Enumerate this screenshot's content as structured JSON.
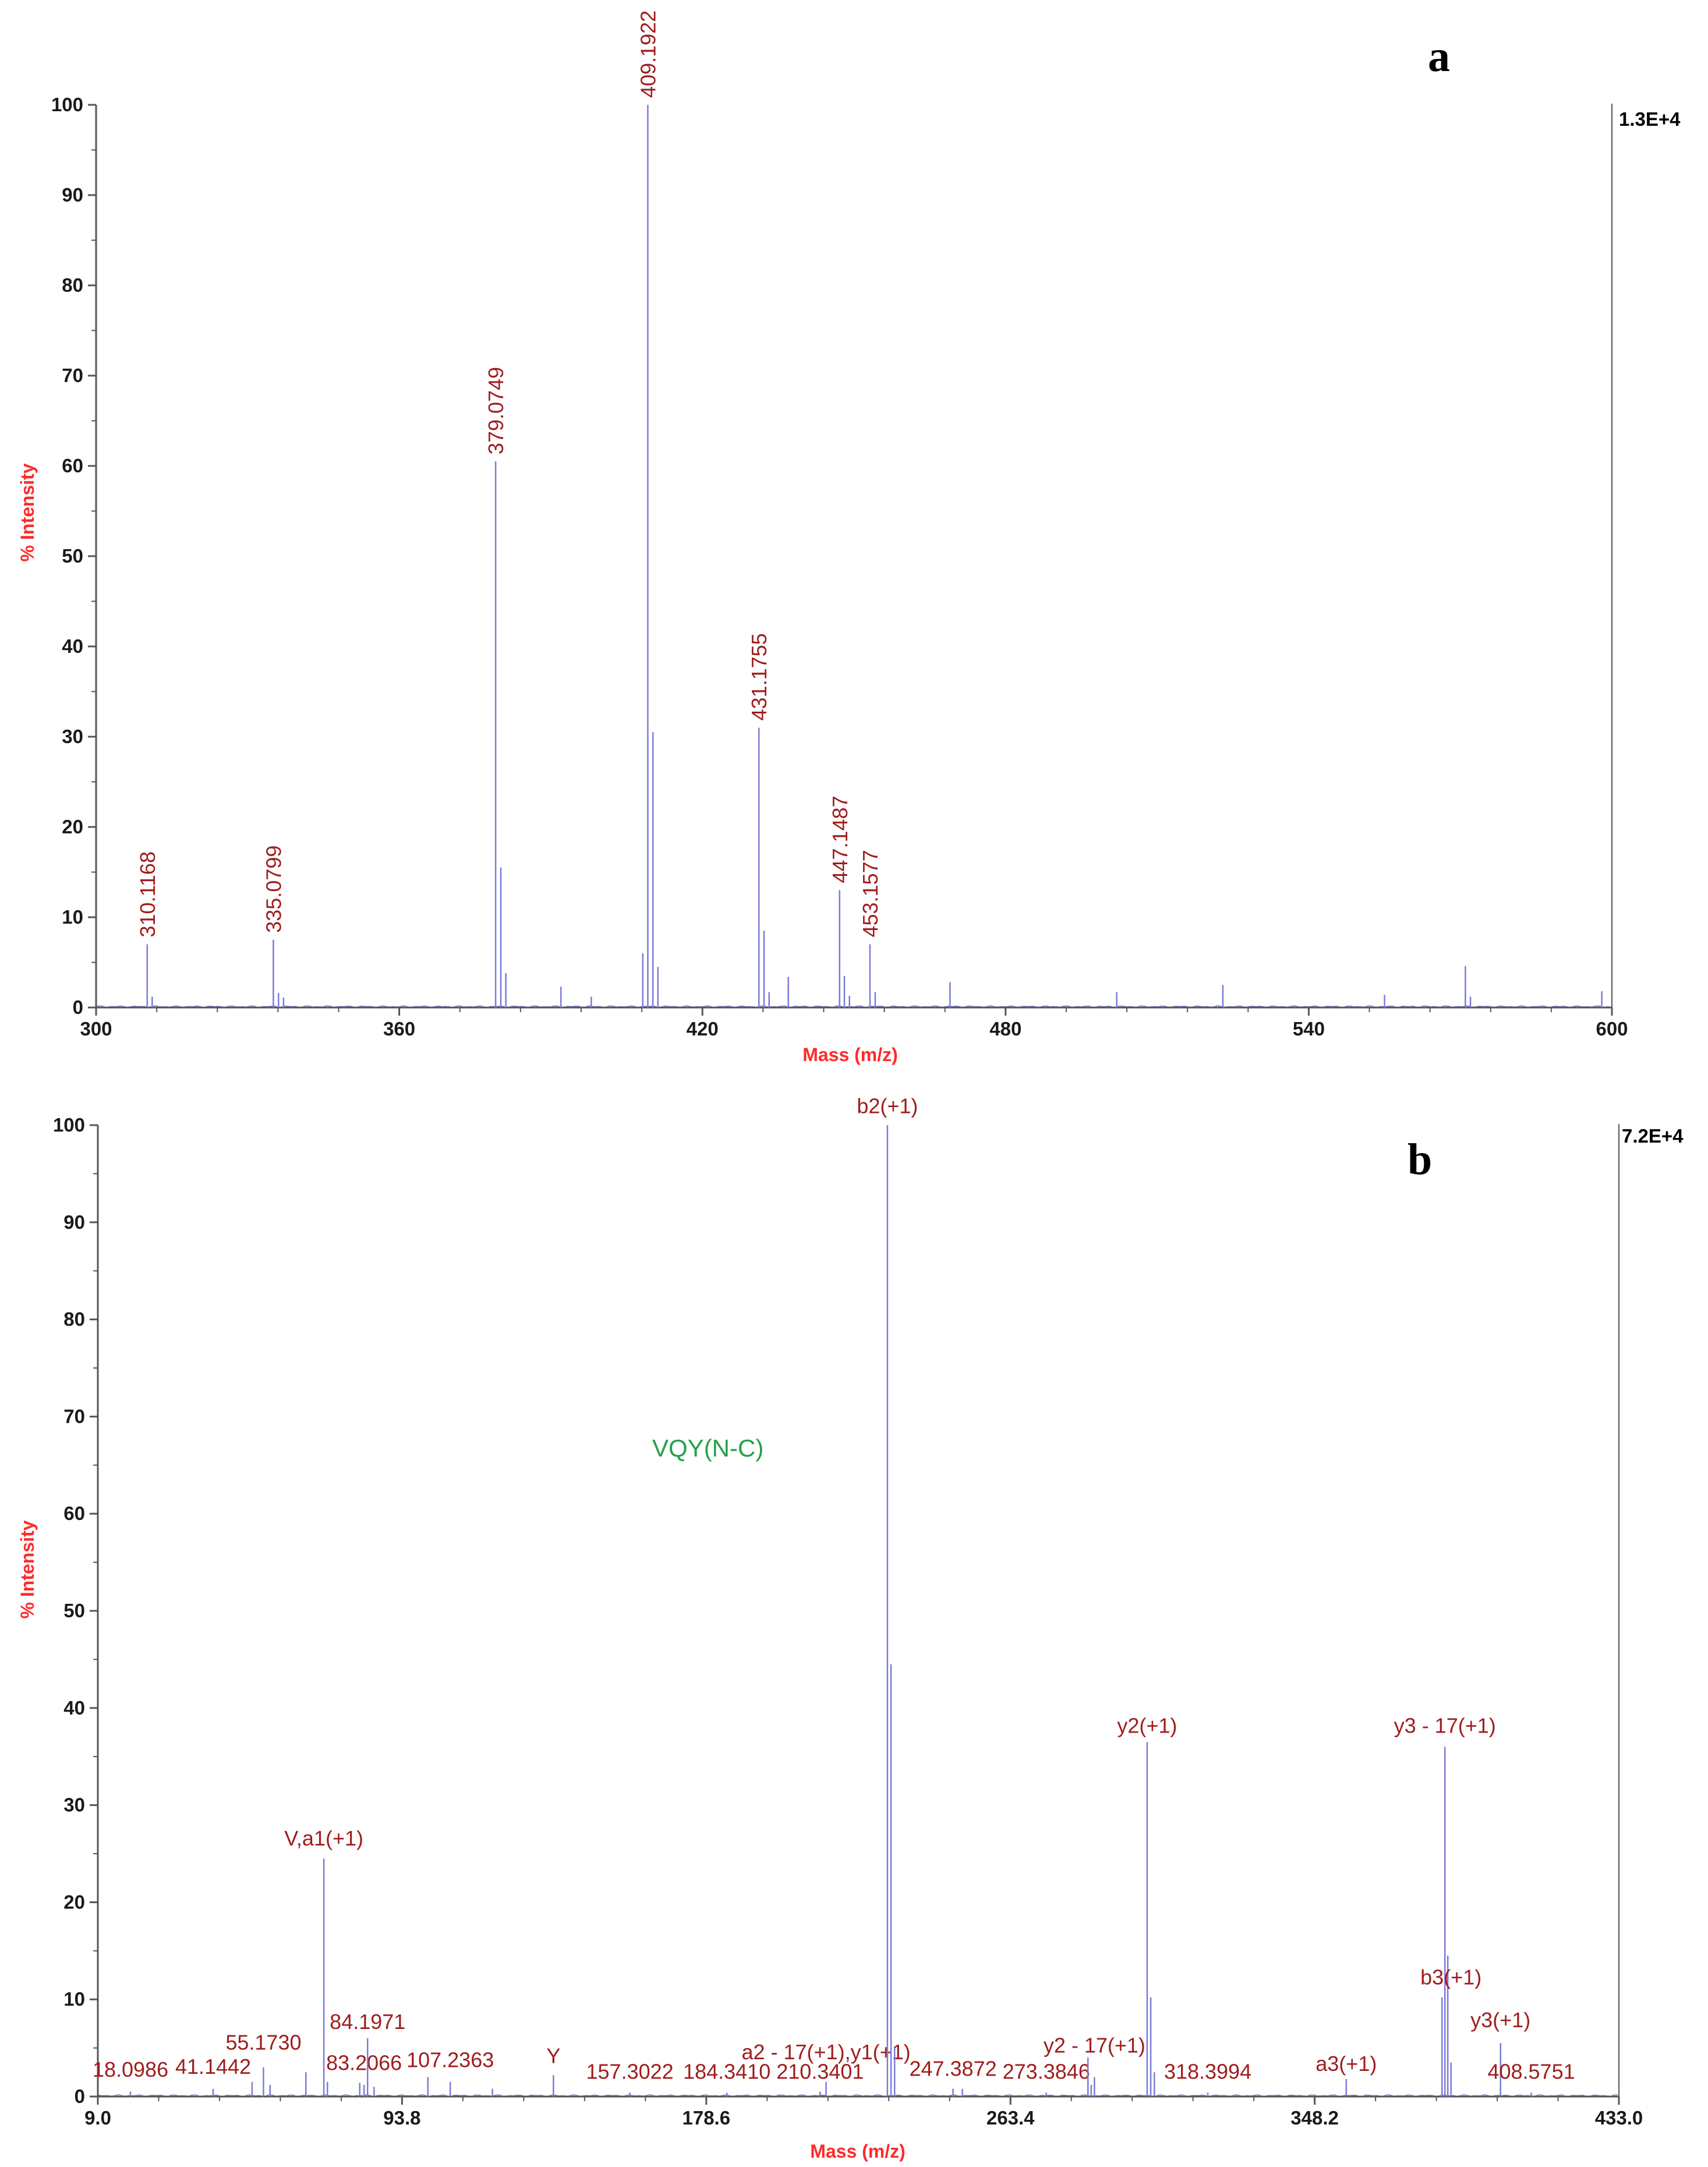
{
  "colors": {
    "axis": "#555555",
    "axis_title": "#ff2a2a",
    "peak_label": "#a01c1c",
    "spectrum": "#7b7bd8",
    "sequence": "#22a04a"
  },
  "chart_data": [
    {
      "type": "line",
      "panel_letter": "a",
      "xlabel": "Mass (m/z)",
      "ylabel": "% Intensity",
      "xlim": [
        300,
        600
      ],
      "ylim": [
        0,
        100
      ],
      "x_ticks": [
        300,
        360,
        420,
        480,
        540,
        600
      ],
      "x_tick_labels": [
        "300",
        "360",
        "420",
        "480",
        "540",
        "600"
      ],
      "y_ticks": [
        0,
        10,
        20,
        30,
        40,
        50,
        60,
        70,
        80,
        90,
        100
      ],
      "y_tick_labels": [
        "0",
        "10",
        "20",
        "30",
        "40",
        "50",
        "60",
        "70",
        "80",
        "90",
        "100"
      ],
      "max_intensity_label": "1.3E+4",
      "peaks": [
        {
          "x": 310.1168,
          "y": 7,
          "label": "310.1168",
          "rotated": true
        },
        {
          "x": 311.1,
          "y": 1.2
        },
        {
          "x": 335.0799,
          "y": 7.5,
          "label": "335.0799",
          "rotated": true
        },
        {
          "x": 336.1,
          "y": 1.6
        },
        {
          "x": 337.1,
          "y": 1.1
        },
        {
          "x": 379.0749,
          "y": 60.5,
          "label": "379.0749",
          "rotated": true
        },
        {
          "x": 380.1,
          "y": 15.5
        },
        {
          "x": 381.1,
          "y": 3.8
        },
        {
          "x": 392.0,
          "y": 2.3
        },
        {
          "x": 398.0,
          "y": 1.2
        },
        {
          "x": 408.2,
          "y": 6
        },
        {
          "x": 409.1922,
          "y": 100,
          "label": "409.1922",
          "rotated": true
        },
        {
          "x": 410.2,
          "y": 30.5
        },
        {
          "x": 411.2,
          "y": 4.5
        },
        {
          "x": 431.1755,
          "y": 31,
          "label": "431.1755",
          "rotated": true
        },
        {
          "x": 432.2,
          "y": 8.5
        },
        {
          "x": 433.2,
          "y": 1.7
        },
        {
          "x": 437.0,
          "y": 3.4
        },
        {
          "x": 447.1487,
          "y": 13,
          "label": "447.1487",
          "rotated": true
        },
        {
          "x": 448.1,
          "y": 3.5
        },
        {
          "x": 449.1,
          "y": 1.3
        },
        {
          "x": 453.1577,
          "y": 7,
          "label": "453.1577",
          "rotated": true
        },
        {
          "x": 454.2,
          "y": 1.7
        },
        {
          "x": 469.0,
          "y": 2.8
        },
        {
          "x": 502.0,
          "y": 1.7
        },
        {
          "x": 523.0,
          "y": 2.5
        },
        {
          "x": 555.0,
          "y": 1.4
        },
        {
          "x": 571.0,
          "y": 4.6
        },
        {
          "x": 572.0,
          "y": 1.2
        },
        {
          "x": 598.0,
          "y": 1.8
        }
      ]
    },
    {
      "type": "line",
      "panel_letter": "b",
      "xlabel": "Mass (m/z)",
      "ylabel": "% Intensity",
      "xlim": [
        9.0,
        433.0
      ],
      "ylim": [
        0,
        100
      ],
      "x_ticks": [
        9.0,
        93.8,
        178.6,
        263.4,
        348.2,
        433.0
      ],
      "x_tick_labels": [
        "9.0",
        "93.8",
        "178.6",
        "263.4",
        "348.2",
        "433.0"
      ],
      "y_ticks": [
        0,
        10,
        20,
        30,
        40,
        50,
        60,
        70,
        80,
        90,
        100
      ],
      "y_tick_labels": [
        "0",
        "10",
        "20",
        "30",
        "40",
        "50",
        "60",
        "70",
        "80",
        "90",
        "100"
      ],
      "max_intensity_label": "7.2E+4",
      "sequence_label": "VQY(N-C)",
      "peaks": [
        {
          "x": 18.0986,
          "y": 0.5,
          "label": "18.0986",
          "label_y": 1.8
        },
        {
          "x": 41.1442,
          "y": 0.8,
          "label": "41.1442",
          "label_y": 2.1
        },
        {
          "x": 52.0,
          "y": 1.5
        },
        {
          "x": 55.173,
          "y": 3,
          "label": "55.1730",
          "label_y": 4.6
        },
        {
          "x": 57.0,
          "y": 1.2
        },
        {
          "x": 67.0,
          "y": 2.5
        },
        {
          "x": 72.0,
          "y": 24.5,
          "label": "V,a1(+1)",
          "label_y": 25.6
        },
        {
          "x": 73.0,
          "y": 1.5
        },
        {
          "x": 82.0,
          "y": 1.4
        },
        {
          "x": 83.2066,
          "y": 1.2,
          "label": "83.2066",
          "label_y": 2.5
        },
        {
          "x": 84.1971,
          "y": 6,
          "label": "84.1971",
          "label_y": 6.7
        },
        {
          "x": 86.0,
          "y": 1.0
        },
        {
          "x": 101.0,
          "y": 2.0
        },
        {
          "x": 107.2363,
          "y": 1.5,
          "label": "107.2363",
          "label_y": 2.8
        },
        {
          "x": 119.0,
          "y": 0.8
        },
        {
          "x": 136.0,
          "y": 2.2,
          "label": "Y",
          "label_y": 3.2
        },
        {
          "x": 157.3022,
          "y": 0.4,
          "label": "157.3022",
          "label_y": 1.6
        },
        {
          "x": 184.341,
          "y": 0.4,
          "label": "184.3410",
          "label_y": 1.6
        },
        {
          "x": 210.3401,
          "y": 0.5,
          "label": "210.3401",
          "label_y": 1.6
        },
        {
          "x": 212.0,
          "y": 1.5,
          "label": "a2 - 17(+1),y1(+1)",
          "label_y": 3.6
        },
        {
          "x": 229.1,
          "y": 100,
          "label": "b2(+1)",
          "label_y": 101
        },
        {
          "x": 230.1,
          "y": 44.5
        },
        {
          "x": 231.1,
          "y": 5
        },
        {
          "x": 247.3872,
          "y": 0.8,
          "label": "247.3872",
          "label_y": 1.9
        },
        {
          "x": 250.0,
          "y": 0.8
        },
        {
          "x": 273.3846,
          "y": 0.4,
          "label": "273.3846",
          "label_y": 1.6
        },
        {
          "x": 285.0,
          "y": 4
        },
        {
          "x": 285.9,
          "y": 1.2
        },
        {
          "x": 286.8,
          "y": 2.0,
          "label": "y2 - 17(+1)",
          "label_y": 4.3
        },
        {
          "x": 301.5,
          "y": 36.5,
          "label": "y2(+1)",
          "label_y": 37.2
        },
        {
          "x": 302.5,
          "y": 10.2
        },
        {
          "x": 303.5,
          "y": 2.5
        },
        {
          "x": 318.3994,
          "y": 0.4,
          "label": "318.3994",
          "label_y": 1.6
        },
        {
          "x": 357.0,
          "y": 1.8,
          "label": "a3(+1)",
          "label_y": 2.4
        },
        {
          "x": 383.7,
          "y": 10.2
        },
        {
          "x": 384.5,
          "y": 36,
          "label": "y3 - 17(+1)",
          "label_y": 37.2
        },
        {
          "x": 385.3,
          "y": 14.5
        },
        {
          "x": 386.2,
          "y": 3.5,
          "label": "b3(+1)",
          "label_y": 11.3
        },
        {
          "x": 400.0,
          "y": 5.5,
          "label": "y3(+1)",
          "label_y": 6.9
        },
        {
          "x": 408.5751,
          "y": 0.4,
          "label": "408.5751",
          "label_y": 1.6
        }
      ]
    }
  ]
}
